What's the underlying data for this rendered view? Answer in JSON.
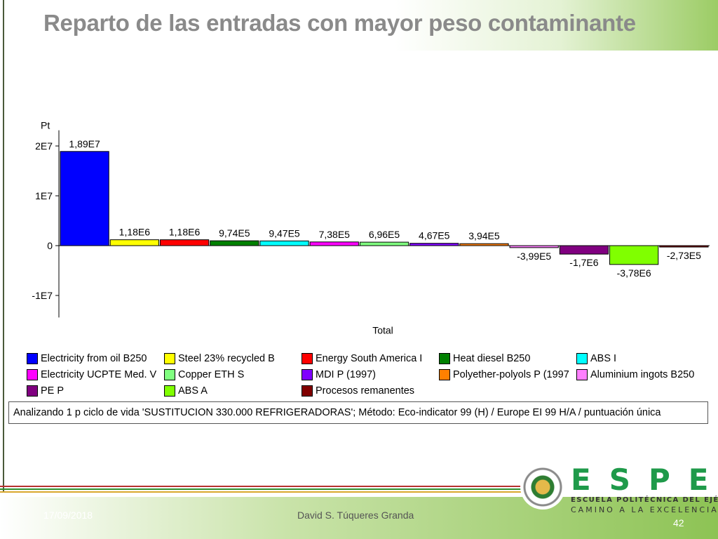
{
  "title": "Reparto de las entradas con mayor peso contaminante",
  "chart_data": {
    "type": "bar",
    "ylabel": "Pt",
    "xlabel": "Total",
    "ylim": [
      -14000000,
      24000000
    ],
    "yticks": [
      {
        "value": 20000000,
        "label": "2E7"
      },
      {
        "value": 10000000,
        "label": "1E7"
      },
      {
        "value": 0,
        "label": "0"
      },
      {
        "value": -10000000,
        "label": "-1E7"
      }
    ],
    "series": [
      {
        "name": "Electricity from oil B250",
        "value": 18900000,
        "label": "1,89E7",
        "color": "#0000ff"
      },
      {
        "name": "Steel 23% recycled B",
        "value": 1180000,
        "label": "1,18E6",
        "color": "#ffff00"
      },
      {
        "name": "Energy South America I",
        "value": 1180000,
        "label": "1,18E6",
        "color": "#ff0000"
      },
      {
        "name": "Heat diesel B250",
        "value": 974000,
        "label": "9,74E5",
        "color": "#008000"
      },
      {
        "name": "ABS I",
        "value": 947000,
        "label": "9,47E5",
        "color": "#00ffff"
      },
      {
        "name": "Electricity UCPTE Med. V",
        "value": 738000,
        "label": "7,38E5",
        "color": "#ff00ff"
      },
      {
        "name": "Copper ETH S",
        "value": 696000,
        "label": "6,96E5",
        "color": "#80ff80"
      },
      {
        "name": "MDI P (1997)",
        "value": 467000,
        "label": "4,67E5",
        "color": "#8000ff"
      },
      {
        "name": "Polyether-polyols P (1997)",
        "value": 394000,
        "label": "3,94E5",
        "color": "#ff8000"
      },
      {
        "name": "Aluminium ingots B250",
        "value": -399000,
        "label": "-3,99E5",
        "color": "#ff80ff"
      },
      {
        "name": "PE P",
        "value": -1700000,
        "label": "-1,7E6",
        "color": "#800080"
      },
      {
        "name": "ABS A",
        "value": -3780000,
        "label": "-3,78E6",
        "color": "#80ff00"
      },
      {
        "name": "Procesos remanentes",
        "value": -273000,
        "label": "-2,73E5",
        "color": "#800000"
      }
    ]
  },
  "legend": {
    "row1": [
      "Electricity from oil B250",
      "Steel 23% recycled B",
      "Energy South America I",
      "Heat diesel B250",
      "ABS I"
    ],
    "row2": [
      "Electricity UCPTE Med. V",
      "Copper ETH S",
      "MDI P (1997)",
      "Polyether-polyols P (1997",
      "Aluminium ingots B250"
    ],
    "row3": [
      "PE P",
      "ABS A",
      "Procesos remanentes"
    ]
  },
  "method_note": "Analizando 1 p ciclo de vida 'SUSTITUCION 330.000 REFRIGERADORAS'; Método: Eco-indicator 99 (H) / Europe EI 99 H/A / puntuación única",
  "footer": {
    "date": "17/09/2018",
    "author": "David S. Túqueres Granda",
    "page": "42"
  },
  "logo": {
    "wordmark": "ESPE",
    "tagline1": "ESCUELA POLITÉCNICA DEL EJÉRCITO",
    "tagline2": "CAMINO A LA EXCELENCIA"
  }
}
